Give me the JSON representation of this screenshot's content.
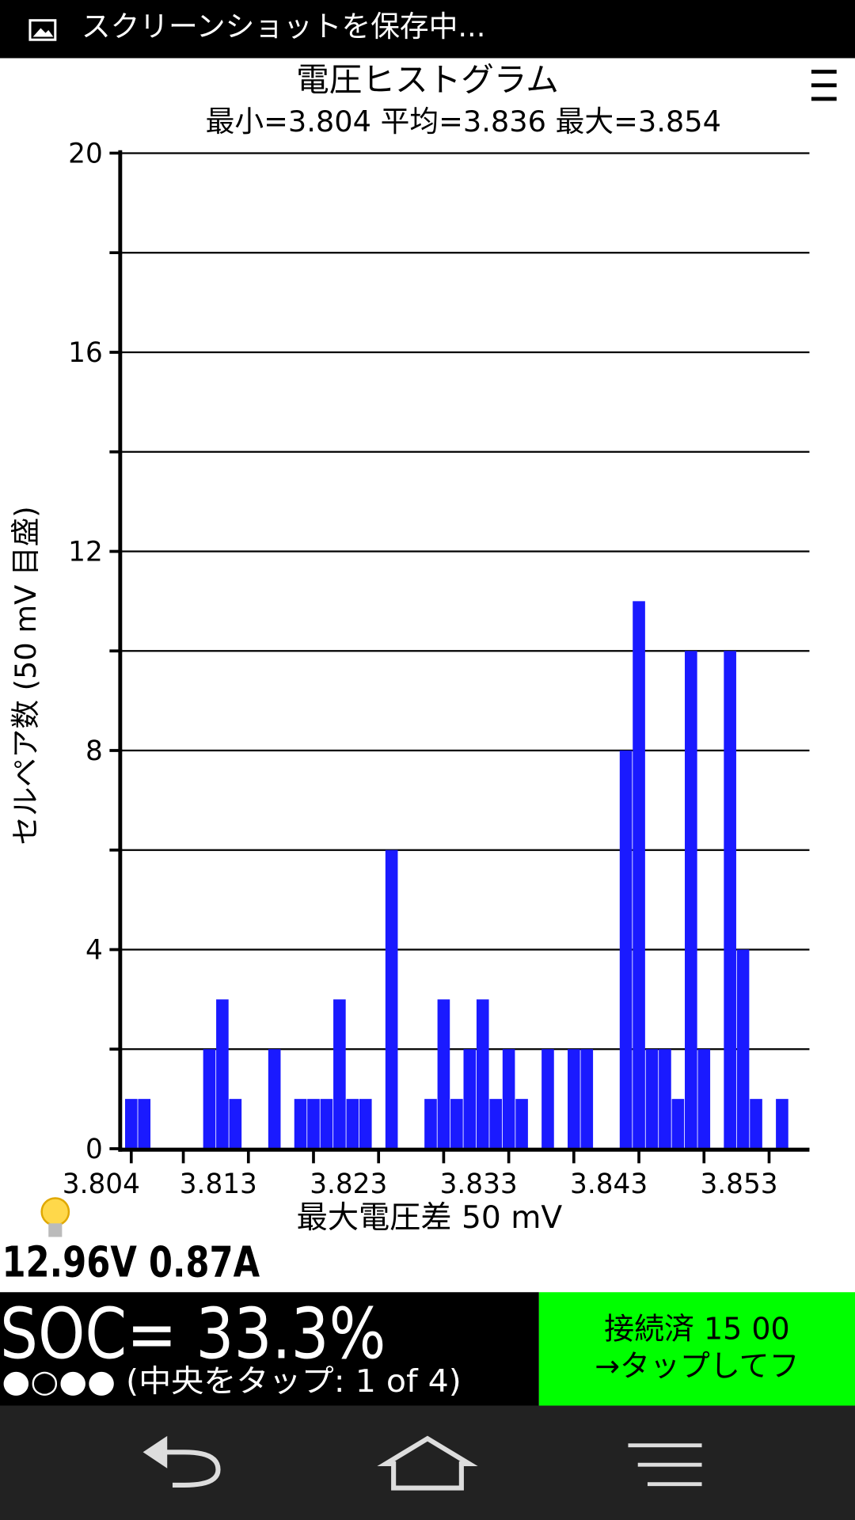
{
  "status_bar": {
    "text": "スクリーンショットを保存中..."
  },
  "chart_data": {
    "type": "bar",
    "title": "電圧ヒストグラム",
    "subtitle": "最小=3.804  平均=3.836  最大=3.854",
    "x_label": "最大電圧差 50 mV",
    "y_label": "セルペア数 (50 mV 目盛)",
    "x": [
      3.804,
      3.805,
      3.81,
      3.811,
      3.812,
      3.815,
      3.817,
      3.818,
      3.819,
      3.82,
      3.821,
      3.822,
      3.824,
      3.827,
      3.828,
      3.829,
      3.83,
      3.831,
      3.832,
      3.833,
      3.834,
      3.836,
      3.838,
      3.839,
      3.842,
      3.843,
      3.844,
      3.845,
      3.846,
      3.847,
      3.848,
      3.85,
      3.851,
      3.852,
      3.854
    ],
    "values": [
      1,
      1,
      2,
      3,
      1,
      2,
      1,
      1,
      1,
      3,
      1,
      1,
      6,
      1,
      3,
      1,
      2,
      3,
      1,
      2,
      1,
      2,
      2,
      2,
      8,
      11,
      2,
      2,
      1,
      10,
      2,
      10,
      4,
      1,
      1
    ],
    "color": "#1a1aff",
    "xlim": [
      3.8033,
      3.8561
    ],
    "ylim": [
      0,
      20
    ],
    "xticks": [
      3.804,
      {
        "value": 3.808,
        "label": null
      },
      3.813,
      {
        "value": 3.818,
        "label": null
      },
      3.823,
      {
        "value": 3.828,
        "label": null
      },
      3.833,
      {
        "value": 3.838,
        "label": null
      },
      3.843,
      {
        "value": 3.848,
        "label": null
      },
      3.853
    ],
    "yticks": [
      0,
      {
        "value": 2,
        "label": null
      },
      4,
      {
        "value": 6,
        "label": null
      },
      8,
      {
        "value": 10,
        "label": null
      },
      12,
      {
        "value": 14,
        "label": null
      },
      16,
      {
        "value": 18,
        "label": null
      },
      20
    ],
    "grid": true
  },
  "readout": {
    "text": "12.96V 0.87A"
  },
  "soc": {
    "text": "SOC= 33.3%",
    "page_indicator": "●○●● (中央をタップ: 1 of 4)"
  },
  "status_button": {
    "line1": "接続済 15 00",
    "line2": "→タップしてフ"
  }
}
